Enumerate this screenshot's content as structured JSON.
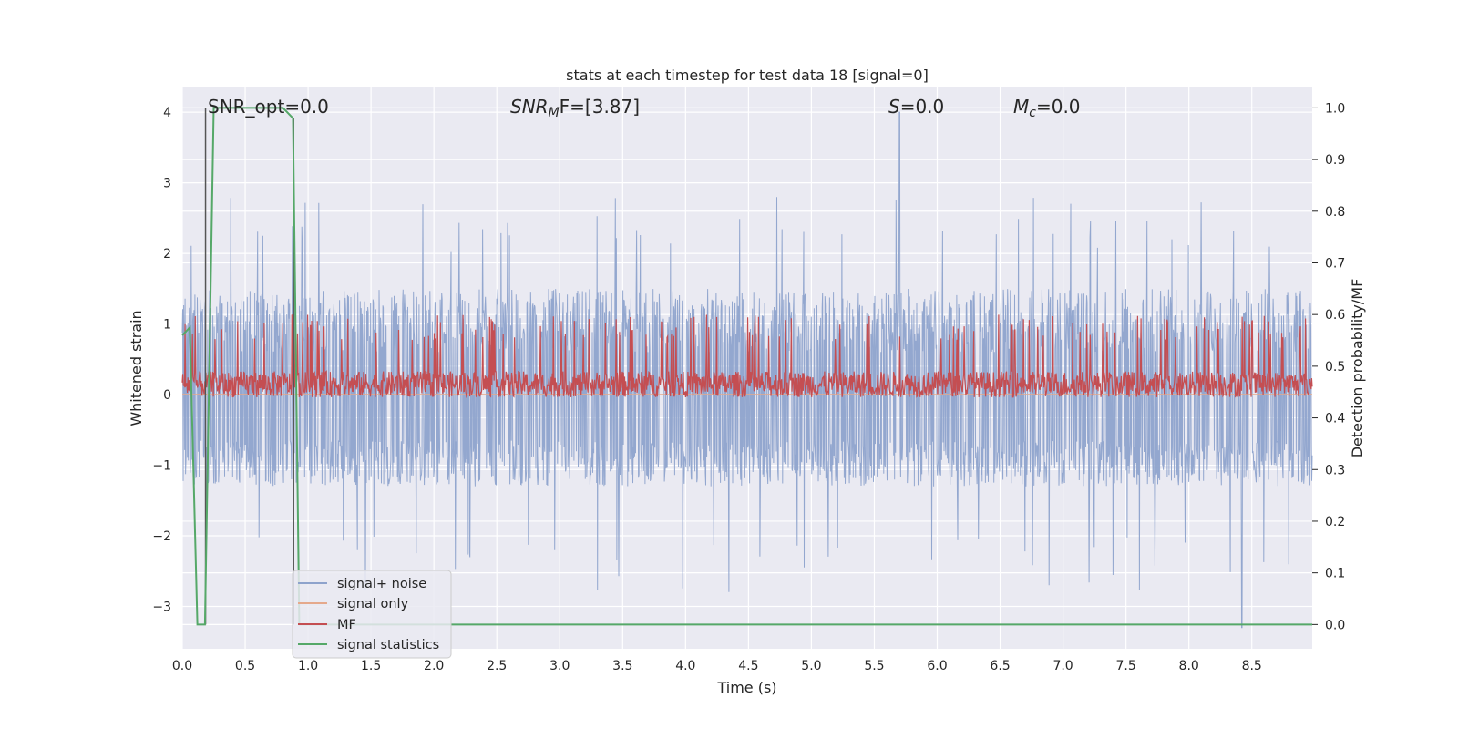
{
  "chart_data": {
    "type": "line",
    "title": "stats at each timestep for test data 18 [signal=0]",
    "xlabel": "Time (s)",
    "ylabel": "Whitened strain",
    "ylabel_right": "Detection probability/MF",
    "xlim": [
      0.0,
      8.98
    ],
    "ylim": [
      -3.6,
      4.35
    ],
    "ylim_right": [
      -0.047,
      1.0395
    ],
    "xticks": [
      "0.0",
      "0.5",
      "1.0",
      "1.5",
      "2.0",
      "2.5",
      "3.0",
      "3.5",
      "4.0",
      "4.5",
      "5.0",
      "5.5",
      "6.0",
      "6.5",
      "7.0",
      "7.5",
      "8.0",
      "8.5"
    ],
    "yticks": [
      "4",
      "3",
      "2",
      "1",
      "0",
      "−1",
      "−2",
      "−3"
    ],
    "yticks_right": [
      "1.0",
      "0.9",
      "0.8",
      "0.7",
      "0.6",
      "0.5",
      "0.4",
      "0.3",
      "0.2",
      "0.1",
      "0.0"
    ],
    "grid": true,
    "legend_position": "lower-left",
    "annotations": {
      "snr_opt": "SNR_opt=0.0",
      "snr_mf": "SNRₘF=[3.87]",
      "snr_mf_main": "SNR",
      "snr_mf_sub": "M",
      "snr_mf_rest": "F=[3.87]",
      "s": "S=0.0",
      "s_main": "S",
      "s_rest": "=0.0",
      "mc": "Mᴄ=0.0",
      "mc_main": "M",
      "mc_sub": "c",
      "mc_rest": "=0.0"
    },
    "series": [
      {
        "name": "signal+ noise",
        "color": "#8ea3cc",
        "envelope": {
          "typical_min": -1.3,
          "typical_max": 1.5,
          "peak_max": 4.0,
          "peak_min": -3.3
        }
      },
      {
        "name": "signal only",
        "color": "#e5a98c",
        "constant": 0.0
      },
      {
        "name": "MF",
        "color": "#c44e52",
        "axis": "right",
        "envelope": {
          "base": 0.46,
          "typical_max": 0.55,
          "peak_max": 0.6
        }
      },
      {
        "name": "signal statistics",
        "color": "#55a868",
        "axis": "right",
        "x": [
          0.0,
          0.06,
          0.12,
          0.18,
          0.25,
          0.8,
          0.88,
          0.93,
          8.98
        ],
        "values": [
          0.56,
          0.575,
          0.0,
          0.0,
          1.0,
          1.0,
          0.98,
          0.0,
          0.0
        ]
      }
    ],
    "vertical_lines": [
      {
        "x": 0.185,
        "from": 0.0,
        "to": 1.0,
        "color": "#555555"
      },
      {
        "x": 0.885,
        "from": 0.0,
        "to": 0.98,
        "color": "#555555"
      }
    ]
  }
}
